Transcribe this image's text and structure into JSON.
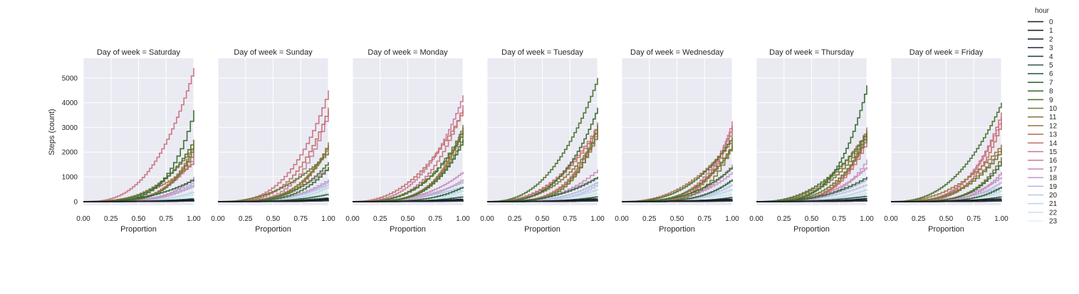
{
  "chart_data": {
    "type": "line",
    "step": true,
    "facet_label_prefix": "Day of week = ",
    "facets": [
      "Saturday",
      "Sunday",
      "Monday",
      "Tuesday",
      "Wednesday",
      "Thursday",
      "Friday"
    ],
    "xlabel": "Proportion",
    "ylabel": "Steps (count)",
    "xlim": [
      0,
      1
    ],
    "ylim": [
      -150,
      5800
    ],
    "xticks": [
      "0.00",
      "0.25",
      "0.50",
      "0.75",
      "1.00"
    ],
    "yticks": [
      "0",
      "1000",
      "2000",
      "3000",
      "4000",
      "5000"
    ],
    "grid": true,
    "background": "#eaeaf2",
    "legend": {
      "title": "hour",
      "placement": "right",
      "entries": [
        "0",
        "1",
        "2",
        "3",
        "4",
        "5",
        "6",
        "7",
        "8",
        "9",
        "10",
        "11",
        "12",
        "13",
        "14",
        "15",
        "16",
        "17",
        "18",
        "19",
        "20",
        "21",
        "22",
        "23"
      ]
    },
    "series_colors": [
      "#1b1b1b",
      "#242630",
      "#293142",
      "#2b3b4d",
      "#2c4650",
      "#2e5151",
      "#305c4c",
      "#356741",
      "#40703b",
      "#527838",
      "#6b7c3a",
      "#857c40",
      "#9e7b4c",
      "#b3785b",
      "#c3766b",
      "#cc7785",
      "#cf80a0",
      "#cb8fba",
      "#c3a2cd",
      "#bab7dd",
      "#b6c9e5",
      "#bcd8ea",
      "#cce6ef",
      "#e4f3f4"
    ],
    "series_max_by_day": {
      "Saturday": [
        80,
        60,
        40,
        30,
        25,
        30,
        120,
        900,
        3700,
        2500,
        2200,
        2300,
        2000,
        1600,
        2300,
        5400,
        1800,
        1000,
        700,
        800,
        600,
        400,
        300,
        200
      ],
      "Sunday": [
        120,
        80,
        50,
        40,
        30,
        40,
        150,
        300,
        1400,
        1600,
        2000,
        2300,
        2200,
        2400,
        3800,
        4500,
        3700,
        1400,
        900,
        800,
        700,
        600,
        400,
        250
      ],
      "Monday": [
        100,
        60,
        40,
        30,
        20,
        40,
        200,
        600,
        2500,
        2800,
        3000,
        2600,
        3100,
        3000,
        3700,
        3900,
        4300,
        1200,
        900,
        800,
        600,
        450,
        300,
        200
      ],
      "Tuesday": [
        120,
        70,
        40,
        30,
        25,
        40,
        200,
        1000,
        3800,
        5000,
        3100,
        2700,
        2800,
        3200,
        3000,
        3100,
        2900,
        1300,
        1000,
        800,
        700,
        500,
        350,
        220
      ],
      "Wednesday": [
        100,
        60,
        40,
        30,
        20,
        35,
        180,
        900,
        1400,
        2600,
        2300,
        2400,
        2200,
        2500,
        3000,
        3100,
        3250,
        1500,
        1200,
        900,
        700,
        500,
        300,
        200
      ],
      "Thursday": [
        130,
        70,
        45,
        30,
        25,
        40,
        220,
        1000,
        4700,
        2800,
        2600,
        2700,
        2900,
        2800,
        3000,
        2500,
        2800,
        1400,
        1700,
        900,
        700,
        500,
        350,
        210
      ],
      "Friday": [
        110,
        60,
        40,
        30,
        25,
        35,
        200,
        600,
        1600,
        4000,
        2100,
        1800,
        2300,
        2200,
        3200,
        3600,
        3400,
        1200,
        1000,
        800,
        600,
        450,
        300,
        200
      ]
    }
  }
}
